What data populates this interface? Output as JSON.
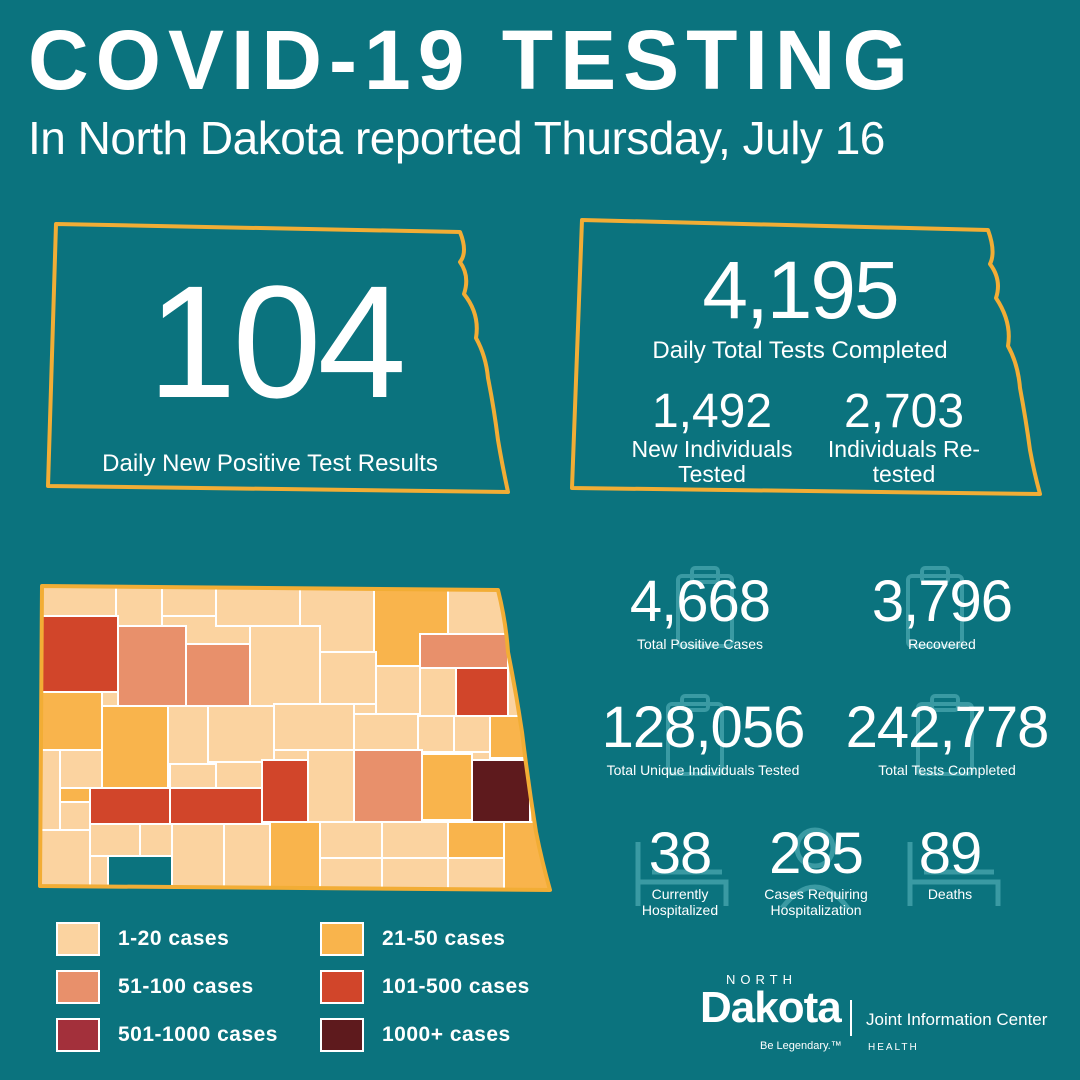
{
  "header": {
    "title": "COVID-19 TESTING",
    "subtitle": "In North Dakota reported Thursday, July 16"
  },
  "daily_positive": {
    "value": "104",
    "label": "Daily New Positive Test Results"
  },
  "daily_tests": {
    "value": "4,195",
    "label": "Daily Total Tests Completed",
    "new_individuals": {
      "value": "1,492",
      "label": "New Individuals Tested"
    },
    "retested": {
      "value": "2,703",
      "label": "Individuals Re-tested"
    }
  },
  "stats": {
    "total_positive": {
      "value": "4,668",
      "label": "Total Positive Cases"
    },
    "recovered": {
      "value": "3,796",
      "label": "Recovered"
    },
    "unique_tested": {
      "value": "128,056",
      "label": "Total Unique Individuals Tested"
    },
    "total_tests": {
      "value": "242,778",
      "label": "Total Tests Completed"
    },
    "hospitalized": {
      "value": "38",
      "label": "Currently Hospitalized"
    },
    "requiring_hosp": {
      "value": "285",
      "label": "Cases Requiring Hospitalization"
    },
    "deaths": {
      "value": "89",
      "label": "Deaths"
    }
  },
  "legend": [
    {
      "label": "1-20 cases",
      "color": "#fbd3a0"
    },
    {
      "label": "21-50 cases",
      "color": "#f9b44c"
    },
    {
      "label": "51-100 cases",
      "color": "#e8906b"
    },
    {
      "label": "101-500 cases",
      "color": "#d1452a"
    },
    {
      "label": "501-1000 cases",
      "color": "#a3303b"
    },
    {
      "label": "1000+ cases",
      "color": "#5e1a1d"
    }
  ],
  "colors": {
    "background": "#0b737e",
    "frame": "#f2ad35",
    "icon": "#3a9aa3"
  },
  "icons": [
    "clipboard-icon",
    "hospital-bed-icon",
    "nurse-icon"
  ],
  "footer": {
    "north": "NORTH",
    "dakota": "Dakota",
    "tagline": "Be Legendary.™",
    "jic": "Joint Information Center",
    "health": "HEALTH"
  }
}
